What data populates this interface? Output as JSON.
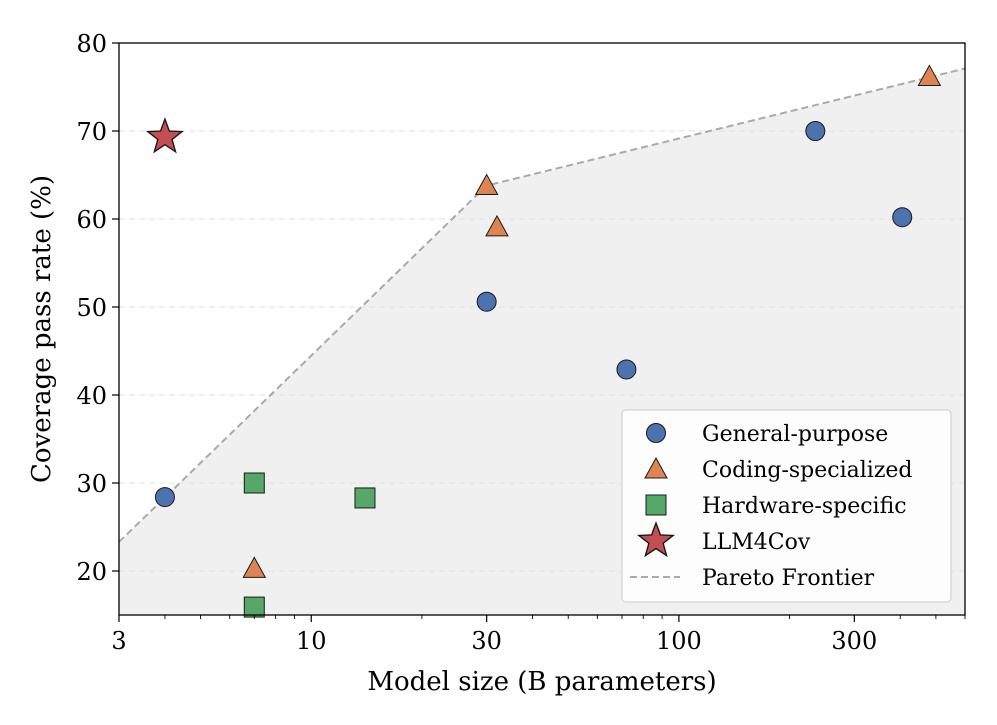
{
  "chart_data": {
    "type": "scatter",
    "title": "",
    "xlabel": "Model size (B parameters)",
    "ylabel": "Coverage pass rate (%)",
    "xscale": "log",
    "xlim": [
      3,
      600
    ],
    "ylim": [
      15,
      80
    ],
    "x_ticks": [
      3,
      10,
      30,
      100,
      300
    ],
    "x_tick_labels": [
      "3",
      "10",
      "30",
      "100",
      "300"
    ],
    "y_ticks": [
      20,
      30,
      40,
      50,
      60,
      70,
      80
    ],
    "y_tick_labels": [
      "20",
      "30",
      "40",
      "50",
      "60",
      "70",
      "80"
    ],
    "grid": "horizontal dashed",
    "legend_position": "lower-right",
    "series": [
      {
        "name": "General-purpose",
        "marker": "circle",
        "color": "#4c72b0",
        "points": [
          {
            "x": 4,
            "y": 28.4
          },
          {
            "x": 30,
            "y": 50.6
          },
          {
            "x": 72,
            "y": 42.9
          },
          {
            "x": 235,
            "y": 70.0
          },
          {
            "x": 405,
            "y": 60.2
          }
        ]
      },
      {
        "name": "Coding-specialized",
        "marker": "triangle",
        "color": "#dd8452",
        "points": [
          {
            "x": 7,
            "y": 20.3
          },
          {
            "x": 30,
            "y": 63.8
          },
          {
            "x": 32,
            "y": 59.1
          },
          {
            "x": 480,
            "y": 76.2
          }
        ]
      },
      {
        "name": "Hardware-specific",
        "marker": "square",
        "color": "#55a868",
        "points": [
          {
            "x": 7,
            "y": 30.0
          },
          {
            "x": 7,
            "y": 15.9
          },
          {
            "x": 14,
            "y": 28.3
          }
        ]
      },
      {
        "name": "LLM4Cov",
        "marker": "star",
        "color": "#c44e52",
        "points": [
          {
            "x": 4,
            "y": 69.3
          }
        ]
      }
    ],
    "pareto_frontier": {
      "name": "Pareto Frontier",
      "color": "#aaaaaa",
      "style": "dashed",
      "points": [
        {
          "x": 3,
          "y": 23.3
        },
        {
          "x": 30,
          "y": 63.8
        },
        {
          "x": 600,
          "y": 77.1
        }
      ]
    },
    "shading_color": "#f0f0f0"
  }
}
